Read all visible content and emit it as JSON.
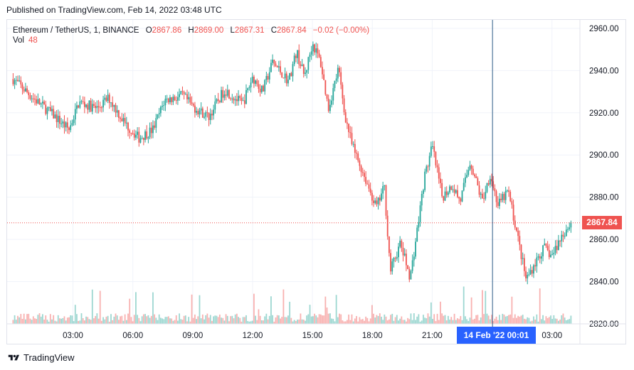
{
  "header": {
    "published": "Published on TradingView.com, Feb 14, 2022 03:48 UTC"
  },
  "legend": {
    "symbol": "Ethereum / TetherUS, 1, BINANCE",
    "o_label": "O",
    "o": "2867.86",
    "h_label": "H",
    "h": "2869.00",
    "l_label": "L",
    "l": "2867.31",
    "c_label": "C",
    "c": "2867.84",
    "change": "−0.02 (−0.00%)",
    "vol_label": "Vol",
    "vol": "48"
  },
  "crosshair_label": "14 Feb '22   00:01",
  "last_price_label": "2867.84",
  "footer": {
    "brand": "TradingView"
  },
  "colors": {
    "up": "#26a69a",
    "down": "#ef5350",
    "accent": "#2962ff",
    "grid": "#f0f3fa"
  },
  "chart_data": {
    "type": "candlestick",
    "x_ticks": [
      "03:00",
      "06:00",
      "09:00",
      "12:00",
      "15:00",
      "18:00",
      "21:00",
      "03:00"
    ],
    "y_ticks": [
      "2960.00",
      "2940.00",
      "2920.00",
      "2900.00",
      "2880.00",
      "2860.00",
      "2840.00",
      "2820.00"
    ],
    "ylim": [
      2820,
      2964
    ],
    "last_price": 2867.84,
    "crosshair_time": "14 Feb '22 00:01",
    "close_path": [
      [
        0,
        2936
      ],
      [
        1,
        2927
      ],
      [
        2,
        2919
      ],
      [
        2.8,
        2912
      ],
      [
        3.3,
        2925
      ],
      [
        4.2,
        2922
      ],
      [
        4.8,
        2927
      ],
      [
        5.6,
        2915
      ],
      [
        6.3,
        2908
      ],
      [
        7,
        2912
      ],
      [
        7.6,
        2926
      ],
      [
        8.5,
        2928
      ],
      [
        9,
        2923
      ],
      [
        9.8,
        2918
      ],
      [
        10.6,
        2931
      ],
      [
        11.5,
        2924
      ],
      [
        12,
        2937
      ],
      [
        12.5,
        2930
      ],
      [
        13,
        2944
      ],
      [
        13.8,
        2935
      ],
      [
        14.2,
        2949
      ],
      [
        14.6,
        2937
      ],
      [
        15,
        2953
      ],
      [
        15.4,
        2944
      ],
      [
        15.8,
        2922
      ],
      [
        16.3,
        2941
      ],
      [
        16.6,
        2920
      ],
      [
        17,
        2904
      ],
      [
        17.6,
        2890
      ],
      [
        18.2,
        2875
      ],
      [
        18.6,
        2885
      ],
      [
        18.9,
        2845
      ],
      [
        19.4,
        2858
      ],
      [
        19.9,
        2842
      ],
      [
        20.3,
        2868
      ],
      [
        20.6,
        2889
      ],
      [
        21,
        2904
      ],
      [
        21.5,
        2880
      ],
      [
        22,
        2886
      ],
      [
        22.4,
        2878
      ],
      [
        22.9,
        2897
      ],
      [
        23.5,
        2878
      ],
      [
        23.9,
        2891
      ],
      [
        24.3,
        2876
      ],
      [
        24.8,
        2883
      ],
      [
        25.2,
        2865
      ],
      [
        25.7,
        2841
      ],
      [
        26.1,
        2848
      ],
      [
        26.6,
        2856
      ],
      [
        27,
        2852
      ],
      [
        27.5,
        2862
      ],
      [
        27.95,
        2867.84
      ]
    ],
    "x_range": [
      -0.3,
      28.4
    ]
  }
}
